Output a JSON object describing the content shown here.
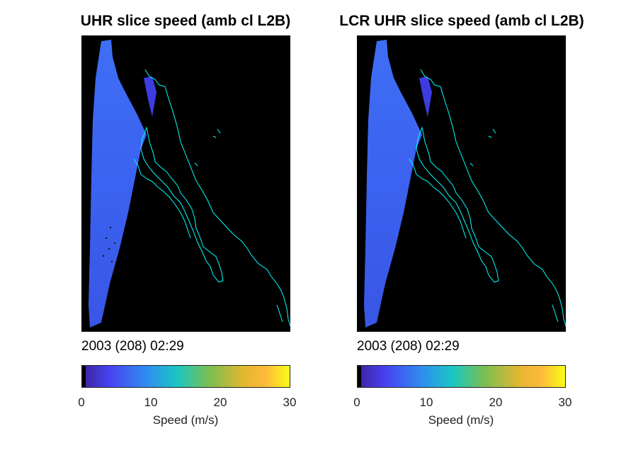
{
  "panels": [
    {
      "title": "UHR slice speed (amb cl L2B)",
      "date_label": "2003 (208) 02:29",
      "colorbar": {
        "ticks": [
          "0",
          "10",
          "20",
          "30"
        ],
        "label": "Speed (m/s)",
        "range": [
          0,
          30
        ]
      },
      "swath_speed_ms": 5
    },
    {
      "title": "LCR UHR slice speed (amb cl L2B)",
      "date_label": "2003 (208) 02:29",
      "colorbar": {
        "ticks": [
          "0",
          "10",
          "20",
          "30"
        ],
        "label": "Speed (m/s)",
        "range": [
          0,
          30
        ]
      },
      "swath_speed_ms": 5
    }
  ],
  "colors": {
    "background": "#000000",
    "coastline": "#00ffff",
    "swath": "#3a63f2",
    "colormap": [
      "#000000",
      "#3e26a8",
      "#4743f2",
      "#2f8ef0",
      "#1ac7c2",
      "#78be54",
      "#e5b72f",
      "#fdb93b",
      "#f9fb15"
    ]
  },
  "chart_data": [
    {
      "type": "heatmap",
      "title": "UHR slice speed (amb cl L2B)",
      "annotation": "2003 (208) 02:29",
      "colorbar_label": "Speed (m/s)",
      "colorbar_range": [
        0,
        30
      ],
      "colorbar_ticks": [
        0,
        10,
        20,
        30
      ],
      "approx_speed_ms": 5
    },
    {
      "type": "heatmap",
      "title": "LCR UHR slice speed (amb cl L2B)",
      "annotation": "2003 (208) 02:29",
      "colorbar_label": "Speed (m/s)",
      "colorbar_range": [
        0,
        30
      ],
      "colorbar_ticks": [
        0,
        10,
        20,
        30
      ],
      "approx_speed_ms": 5
    }
  ]
}
